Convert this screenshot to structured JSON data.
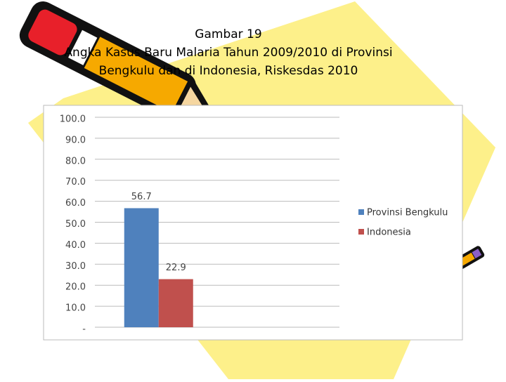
{
  "chart_data": {
    "type": "bar",
    "title": [
      "Gambar 19",
      "Angka Kasus Baru Malaria Tahun 2009/2010 di Provinsi",
      "Bengkulu dan di Indonesia, Riskesdas 2010"
    ],
    "categories": [
      null
    ],
    "series": [
      {
        "name": "Provinsi Bengkulu",
        "color": "#4f81bd",
        "values": [
          56.7
        ]
      },
      {
        "name": "Indonesia",
        "color": "#c0504d",
        "values": [
          22.9
        ]
      }
    ],
    "ylim": [
      0,
      100
    ],
    "yticks": [
      {
        "value": 0,
        "label": "-"
      },
      {
        "value": 10,
        "label": "10.0"
      },
      {
        "value": 20,
        "label": "20.0"
      },
      {
        "value": 30,
        "label": "30.0"
      },
      {
        "value": 40,
        "label": "40.0"
      },
      {
        "value": 50,
        "label": "50.0"
      },
      {
        "value": 60,
        "label": "60.0"
      },
      {
        "value": 70,
        "label": "70.0"
      },
      {
        "value": 80,
        "label": "80.0"
      },
      {
        "value": 90,
        "label": "90.0"
      },
      {
        "value": 100,
        "label": "100.0"
      }
    ],
    "grid": true,
    "legend": "right"
  }
}
